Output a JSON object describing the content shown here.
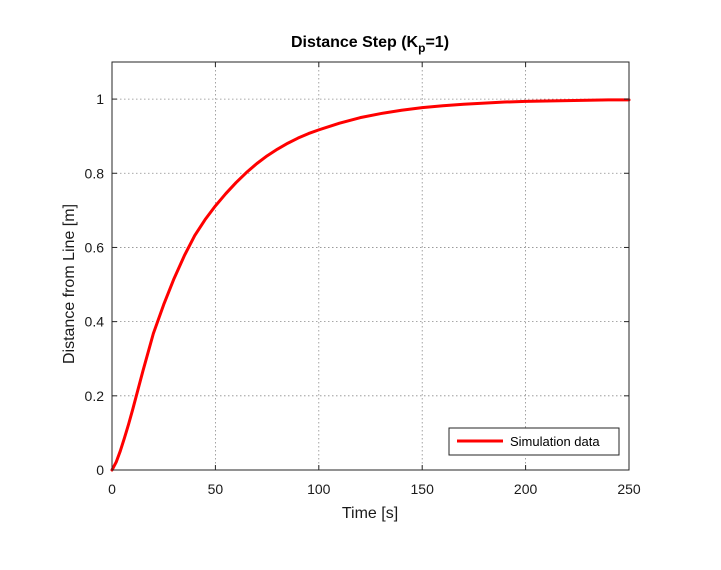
{
  "chart_data": {
    "type": "line",
    "title_main": "Distance Step (K",
    "title_sub": "p",
    "title_tail": "=1)",
    "xlabel": "Time [s]",
    "ylabel": "Distance from Line [m]",
    "xlim": [
      0,
      250
    ],
    "ylim": [
      0,
      1.1
    ],
    "xticks": [
      0,
      50,
      100,
      150,
      200,
      250
    ],
    "yticks": [
      0,
      0.2,
      0.4,
      0.6,
      0.8,
      1
    ],
    "xtick_labels": [
      "0",
      "50",
      "100",
      "150",
      "200",
      "250"
    ],
    "ytick_labels": [
      "0",
      "0.2",
      "0.4",
      "0.6",
      "0.8",
      "1"
    ],
    "grid": true,
    "legend_position": "bottom-right",
    "series": [
      {
        "name": "Simulation data",
        "color": "#ff0000",
        "x": [
          0,
          2,
          4,
          6,
          8,
          10,
          15,
          20,
          25,
          30,
          35,
          40,
          45,
          50,
          55,
          60,
          65,
          70,
          75,
          80,
          85,
          90,
          95,
          100,
          110,
          120,
          130,
          140,
          150,
          160,
          170,
          180,
          190,
          200,
          210,
          220,
          230,
          240,
          250
        ],
        "y": [
          0,
          0.021,
          0.051,
          0.086,
          0.123,
          0.163,
          0.268,
          0.368,
          0.446,
          0.516,
          0.578,
          0.632,
          0.675,
          0.712,
          0.745,
          0.775,
          0.802,
          0.826,
          0.847,
          0.865,
          0.881,
          0.895,
          0.907,
          0.917,
          0.935,
          0.95,
          0.961,
          0.97,
          0.977,
          0.982,
          0.986,
          0.989,
          0.992,
          0.994,
          0.995,
          0.996,
          0.997,
          0.998,
          0.998
        ]
      }
    ]
  }
}
